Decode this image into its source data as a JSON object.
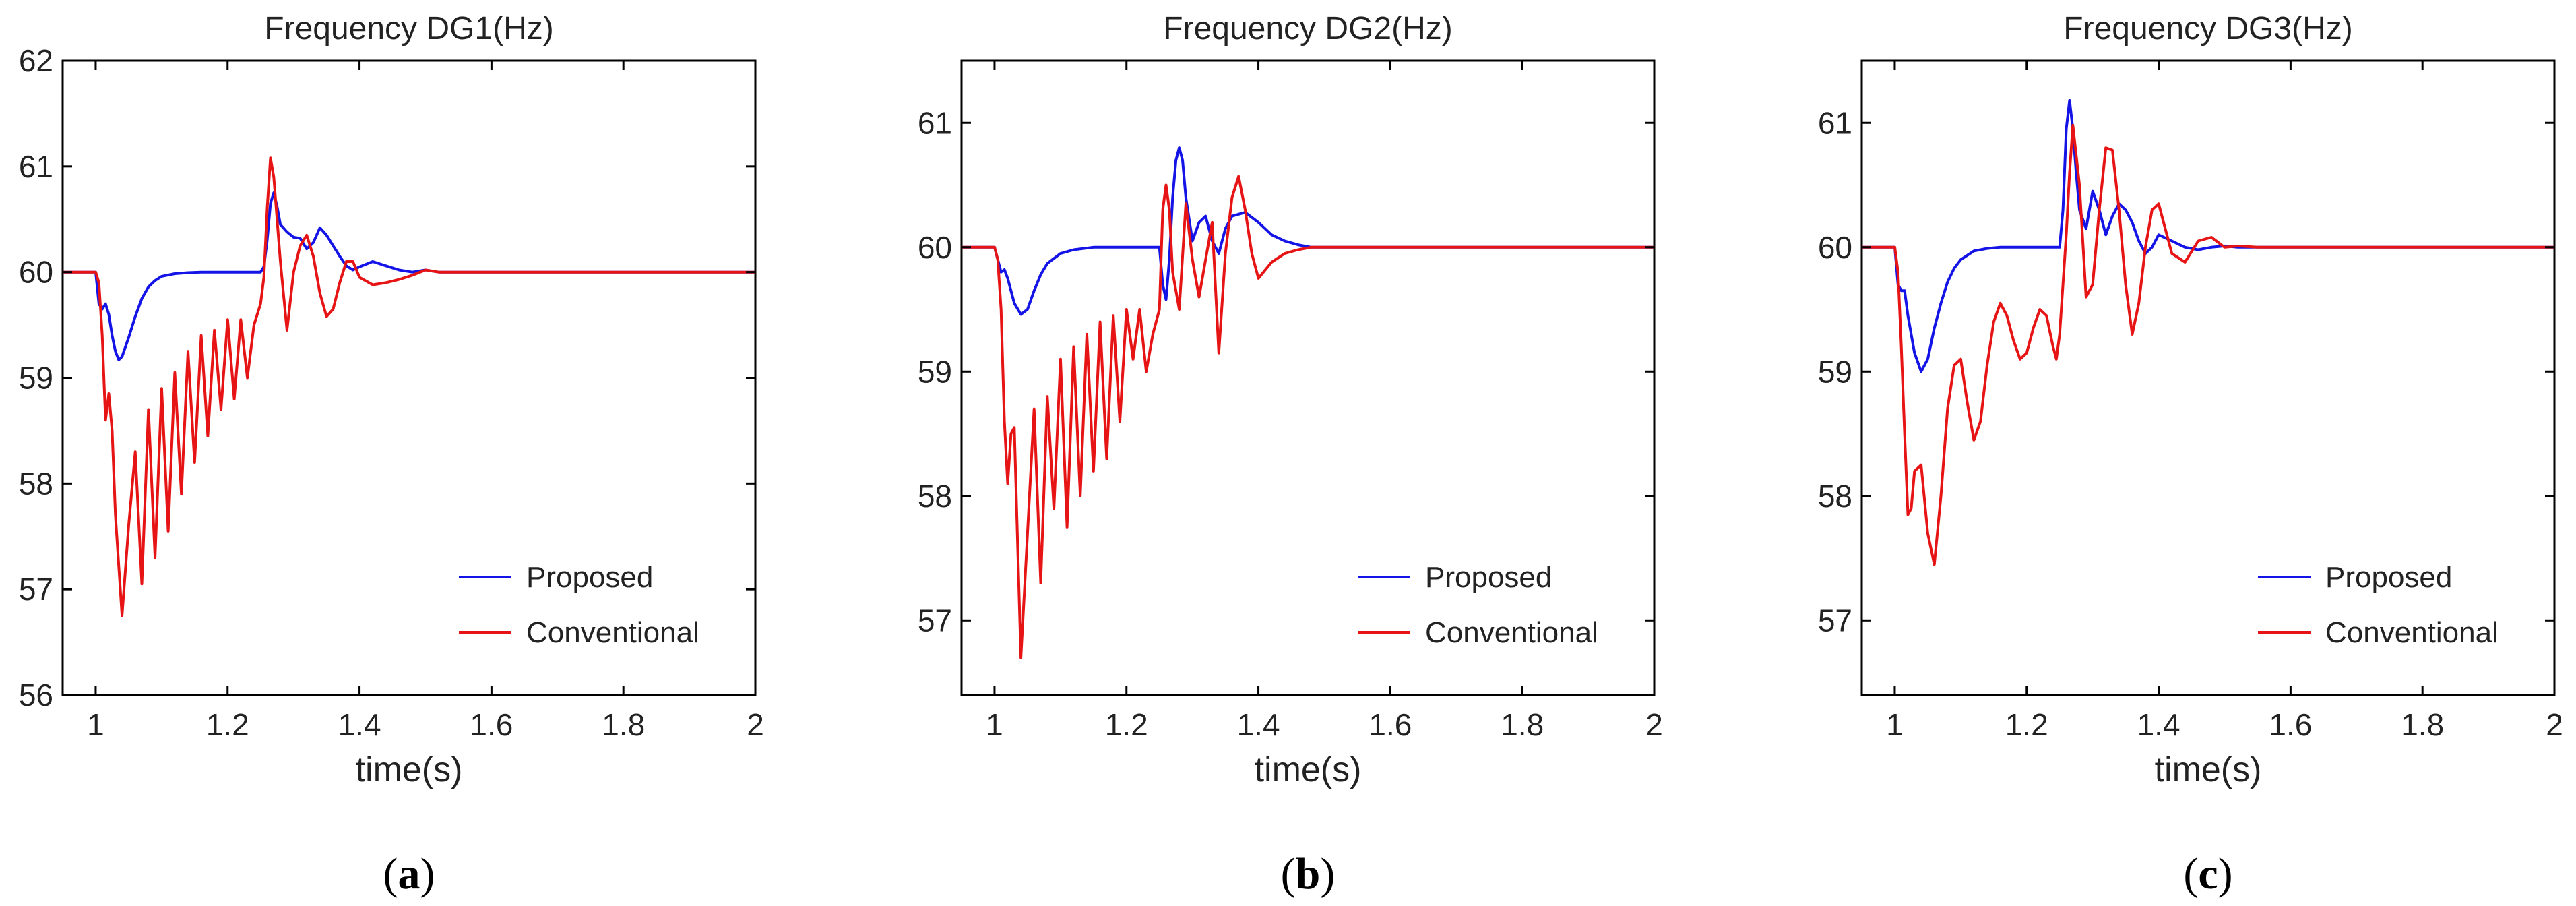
{
  "chart_data": [
    {
      "type": "line",
      "title": "Frequency DG1(Hz)",
      "xlabel": "time(s)",
      "ylabel": "",
      "caption": "a",
      "xlim": [
        0.95,
        2.0
      ],
      "ylim": [
        56,
        62
      ],
      "xticks": [
        "1",
        "1.2",
        "1.4",
        "1.6",
        "1.8",
        "2"
      ],
      "yticks": [
        "56",
        "57",
        "58",
        "59",
        "60",
        "61",
        "62"
      ],
      "legend_position": "bottom-right",
      "series": [
        {
          "name": "Proposed",
          "color": "#1414e6",
          "x": [
            0.95,
            1.0,
            1.005,
            1.01,
            1.015,
            1.02,
            1.025,
            1.03,
            1.035,
            1.04,
            1.05,
            1.06,
            1.07,
            1.08,
            1.09,
            1.1,
            1.12,
            1.14,
            1.16,
            1.18,
            1.2,
            1.22,
            1.25,
            1.255,
            1.26,
            1.265,
            1.27,
            1.275,
            1.28,
            1.29,
            1.3,
            1.31,
            1.32,
            1.33,
            1.34,
            1.35,
            1.36,
            1.37,
            1.38,
            1.39,
            1.4,
            1.42,
            1.44,
            1.46,
            1.48,
            1.5,
            1.52,
            1.55,
            1.6,
            2.0
          ],
          "y": [
            60,
            60,
            59.7,
            59.65,
            59.7,
            59.6,
            59.4,
            59.25,
            59.17,
            59.2,
            59.38,
            59.58,
            59.75,
            59.86,
            59.92,
            59.96,
            59.985,
            59.995,
            60,
            60,
            60,
            60,
            60,
            60.05,
            60.3,
            60.65,
            60.75,
            60.62,
            60.45,
            60.38,
            60.33,
            60.32,
            60.22,
            60.28,
            60.42,
            60.35,
            60.25,
            60.15,
            60.06,
            60.02,
            60.05,
            60.1,
            60.06,
            60.02,
            60.0,
            60.02,
            60.0,
            60.0,
            60.0,
            60.0
          ]
        },
        {
          "name": "Conventional",
          "color": "#e61414",
          "x": [
            0.95,
            1.0,
            1.005,
            1.01,
            1.015,
            1.02,
            1.025,
            1.03,
            1.04,
            1.05,
            1.06,
            1.07,
            1.08,
            1.09,
            1.1,
            1.11,
            1.12,
            1.13,
            1.14,
            1.15,
            1.16,
            1.17,
            1.18,
            1.19,
            1.2,
            1.21,
            1.22,
            1.23,
            1.24,
            1.25,
            1.255,
            1.26,
            1.265,
            1.27,
            1.28,
            1.29,
            1.3,
            1.31,
            1.32,
            1.33,
            1.34,
            1.35,
            1.36,
            1.37,
            1.38,
            1.39,
            1.4,
            1.42,
            1.44,
            1.46,
            1.48,
            1.5,
            1.52,
            1.55,
            1.6,
            2.0
          ],
          "y": [
            60,
            60,
            59.9,
            59.4,
            58.6,
            58.85,
            58.5,
            57.7,
            56.75,
            57.6,
            58.3,
            57.05,
            58.7,
            57.3,
            58.9,
            57.55,
            59.05,
            57.9,
            59.25,
            58.2,
            59.4,
            58.45,
            59.45,
            58.7,
            59.55,
            58.8,
            59.55,
            59.0,
            59.5,
            59.7,
            59.95,
            60.6,
            61.08,
            60.9,
            60.1,
            59.45,
            60.0,
            60.25,
            60.35,
            60.15,
            59.8,
            59.58,
            59.65,
            59.9,
            60.1,
            60.1,
            59.95,
            59.88,
            59.9,
            59.93,
            59.97,
            60.02,
            60.0,
            60.0,
            60.0,
            60.0
          ]
        }
      ]
    },
    {
      "type": "line",
      "title": "Frequency DG2(Hz)",
      "xlabel": "time(s)",
      "ylabel": "",
      "caption": "b",
      "xlim": [
        0.95,
        2.0
      ],
      "ylim": [
        56.4,
        61.5
      ],
      "xticks": [
        "1",
        "1.2",
        "1.4",
        "1.6",
        "1.8",
        "2"
      ],
      "yticks": [
        "57",
        "58",
        "59",
        "60",
        "61"
      ],
      "legend_position": "bottom-right",
      "series": [
        {
          "name": "Proposed",
          "color": "#1414e6",
          "x": [
            0.95,
            1.0,
            1.005,
            1.01,
            1.015,
            1.02,
            1.03,
            1.04,
            1.05,
            1.06,
            1.07,
            1.08,
            1.1,
            1.12,
            1.15,
            1.2,
            1.25,
            1.255,
            1.26,
            1.265,
            1.27,
            1.275,
            1.28,
            1.285,
            1.29,
            1.3,
            1.31,
            1.32,
            1.33,
            1.34,
            1.35,
            1.36,
            1.38,
            1.4,
            1.42,
            1.44,
            1.46,
            1.48,
            1.5,
            1.55,
            2.0
          ],
          "y": [
            60,
            60,
            59.9,
            59.8,
            59.82,
            59.75,
            59.55,
            59.46,
            59.5,
            59.65,
            59.78,
            59.87,
            59.95,
            59.98,
            60.0,
            60.0,
            60.0,
            59.7,
            59.58,
            59.9,
            60.4,
            60.7,
            60.8,
            60.7,
            60.4,
            60.05,
            60.2,
            60.25,
            60.05,
            59.95,
            60.15,
            60.25,
            60.28,
            60.2,
            60.1,
            60.05,
            60.02,
            60.0,
            60.0,
            60.0,
            60.0
          ]
        },
        {
          "name": "Conventional",
          "color": "#e61414",
          "x": [
            0.95,
            1.0,
            1.005,
            1.01,
            1.015,
            1.02,
            1.025,
            1.03,
            1.04,
            1.05,
            1.06,
            1.07,
            1.08,
            1.09,
            1.1,
            1.11,
            1.12,
            1.13,
            1.14,
            1.15,
            1.16,
            1.17,
            1.18,
            1.19,
            1.2,
            1.21,
            1.22,
            1.23,
            1.24,
            1.25,
            1.255,
            1.26,
            1.265,
            1.27,
            1.28,
            1.29,
            1.3,
            1.31,
            1.32,
            1.33,
            1.34,
            1.35,
            1.36,
            1.37,
            1.38,
            1.39,
            1.4,
            1.42,
            1.44,
            1.46,
            1.48,
            1.5,
            1.52,
            1.55,
            2.0
          ],
          "y": [
            60,
            60,
            59.9,
            59.5,
            58.6,
            58.1,
            58.5,
            58.55,
            56.7,
            57.7,
            58.7,
            57.3,
            58.8,
            57.9,
            59.1,
            57.75,
            59.2,
            58.0,
            59.3,
            58.2,
            59.4,
            58.3,
            59.45,
            58.6,
            59.5,
            59.1,
            59.5,
            59.0,
            59.3,
            59.5,
            60.3,
            60.5,
            60.3,
            59.8,
            59.5,
            60.35,
            59.9,
            59.6,
            59.9,
            60.2,
            59.15,
            59.95,
            60.4,
            60.57,
            60.3,
            59.95,
            59.75,
            59.88,
            59.95,
            59.98,
            60.0,
            60.0,
            60.0,
            60.0,
            60.0
          ]
        }
      ]
    },
    {
      "type": "line",
      "title": "Frequency DG3(Hz)",
      "xlabel": "time(s)",
      "ylabel": "",
      "caption": "c",
      "xlim": [
        0.95,
        2.0
      ],
      "ylim": [
        56.4,
        61.5
      ],
      "xticks": [
        "1",
        "1.2",
        "1.4",
        "1.6",
        "1.8",
        "2"
      ],
      "yticks": [
        "57",
        "58",
        "59",
        "60",
        "61"
      ],
      "legend_position": "bottom-right",
      "series": [
        {
          "name": "Proposed",
          "color": "#1414e6",
          "x": [
            0.95,
            1.0,
            1.005,
            1.01,
            1.015,
            1.02,
            1.03,
            1.04,
            1.05,
            1.06,
            1.07,
            1.08,
            1.09,
            1.1,
            1.12,
            1.14,
            1.16,
            1.2,
            1.25,
            1.255,
            1.26,
            1.265,
            1.27,
            1.275,
            1.28,
            1.29,
            1.3,
            1.31,
            1.32,
            1.33,
            1.34,
            1.35,
            1.36,
            1.37,
            1.38,
            1.39,
            1.4,
            1.42,
            1.44,
            1.46,
            1.48,
            1.5,
            1.52,
            1.55,
            1.6,
            2.0
          ],
          "y": [
            60,
            60,
            59.7,
            59.65,
            59.65,
            59.45,
            59.15,
            59.0,
            59.1,
            59.35,
            59.55,
            59.72,
            59.83,
            59.9,
            59.97,
            59.99,
            60.0,
            60.0,
            60.0,
            60.3,
            60.95,
            61.18,
            60.95,
            60.6,
            60.3,
            60.15,
            60.45,
            60.3,
            60.1,
            60.25,
            60.35,
            60.3,
            60.2,
            60.05,
            59.95,
            60.0,
            60.1,
            60.05,
            60.0,
            59.98,
            60.0,
            60.01,
            60.0,
            60.0,
            60.0,
            60.0
          ]
        },
        {
          "name": "Conventional",
          "color": "#e61414",
          "x": [
            0.95,
            1.0,
            1.005,
            1.01,
            1.015,
            1.02,
            1.025,
            1.03,
            1.04,
            1.05,
            1.06,
            1.07,
            1.08,
            1.09,
            1.1,
            1.11,
            1.12,
            1.13,
            1.14,
            1.15,
            1.16,
            1.17,
            1.18,
            1.19,
            1.2,
            1.21,
            1.22,
            1.23,
            1.24,
            1.245,
            1.25,
            1.255,
            1.26,
            1.265,
            1.27,
            1.28,
            1.29,
            1.3,
            1.31,
            1.32,
            1.33,
            1.34,
            1.35,
            1.36,
            1.37,
            1.38,
            1.39,
            1.4,
            1.41,
            1.42,
            1.44,
            1.46,
            1.48,
            1.5,
            1.52,
            1.55,
            1.6,
            2.0
          ],
          "y": [
            60,
            60,
            59.8,
            59.2,
            58.5,
            57.85,
            57.9,
            58.2,
            58.25,
            57.7,
            57.45,
            58.0,
            58.7,
            59.05,
            59.1,
            58.75,
            58.45,
            58.6,
            59.05,
            59.4,
            59.55,
            59.45,
            59.25,
            59.1,
            59.15,
            59.35,
            59.5,
            59.45,
            59.2,
            59.1,
            59.3,
            59.7,
            60.1,
            60.6,
            60.98,
            60.5,
            59.6,
            59.7,
            60.3,
            60.8,
            60.78,
            60.3,
            59.7,
            59.3,
            59.55,
            60.0,
            60.3,
            60.35,
            60.15,
            59.95,
            59.88,
            60.05,
            60.08,
            60.0,
            60.01,
            60.0,
            60.0,
            60.0
          ]
        }
      ]
    }
  ]
}
